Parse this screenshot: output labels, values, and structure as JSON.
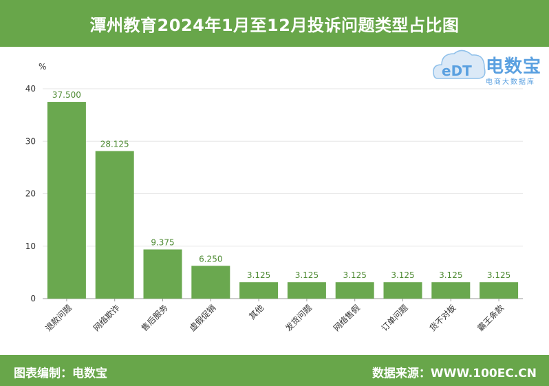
{
  "header": {
    "title": "潭州教育2024年1月至12月投诉问题类型占比图"
  },
  "logo": {
    "brand": "电数宝",
    "sub": "电商大数据库",
    "mark_text": "eDT"
  },
  "footer": {
    "left": "图表编制：电数宝",
    "right": "数据来源：WWW.100EC.CN"
  },
  "colors": {
    "accent": "#68a64a",
    "bar": "#6aa84f",
    "logo": "#5aa0e0"
  },
  "chart_data": {
    "type": "bar",
    "unit": "%",
    "categories": [
      "退款问题",
      "网络欺诈",
      "售后服务",
      "虚假促销",
      "其他",
      "发货问题",
      "网络售假",
      "订单问题",
      "货不对板",
      "霸王条款"
    ],
    "values": [
      37.5,
      28.125,
      9.375,
      6.25,
      3.125,
      3.125,
      3.125,
      3.125,
      3.125,
      3.125
    ],
    "value_labels": [
      "37.500",
      "28.125",
      "9.375",
      "6.250",
      "3.125",
      "3.125",
      "3.125",
      "3.125",
      "3.125",
      "3.125"
    ],
    "yticks": [
      "0",
      "10",
      "20",
      "30",
      "40"
    ],
    "ylim": [
      0,
      40
    ],
    "grid": true,
    "legend": "none"
  }
}
